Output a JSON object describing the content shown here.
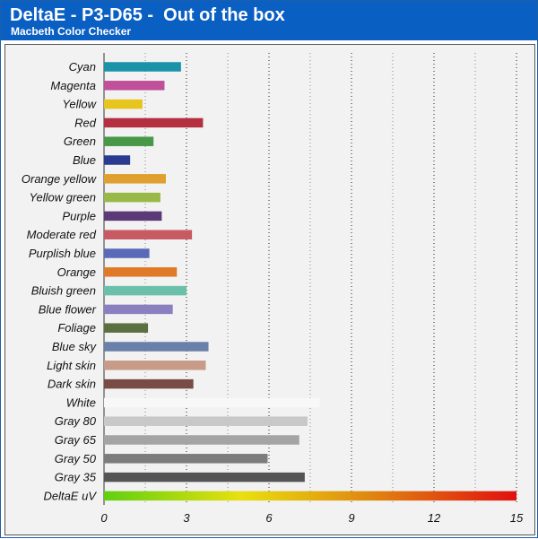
{
  "header": {
    "title": "DeltaE - P3-D65 -  Out of the box",
    "subtitle": "Macbeth Color Checker"
  },
  "chart_data": {
    "type": "bar",
    "orientation": "horizontal",
    "categories": [
      "Cyan",
      "Magenta",
      "Yellow",
      "Red",
      "Green",
      "Blue",
      "Orange yellow",
      "Yellow green",
      "Purple",
      "Moderate red",
      "Purplish blue",
      "Orange",
      "Bluish green",
      "Blue flower",
      "Foliage",
      "Blue sky",
      "Light skin",
      "Dark skin",
      "White",
      "Gray 80",
      "Gray 65",
      "Gray 50",
      "Gray 35",
      "DeltaE uV"
    ],
    "values": [
      2.8,
      2.2,
      1.4,
      3.6,
      1.8,
      0.95,
      2.25,
      2.05,
      2.1,
      3.2,
      1.65,
      2.65,
      3.0,
      2.5,
      1.6,
      3.8,
      3.7,
      3.25,
      7.85,
      7.4,
      7.1,
      5.95,
      7.3,
      15.0
    ],
    "colors": [
      "#1a93a8",
      "#c0509a",
      "#e8c41e",
      "#b43040",
      "#489848",
      "#2a3a90",
      "#e0a030",
      "#98b848",
      "#5c3a78",
      "#c85a64",
      "#5a6ab8",
      "#e07a28",
      "#6ac0a8",
      "#8a80c0",
      "#5a7040",
      "#6a80a8",
      "#c89a88",
      "#784c44",
      "#f8f8f8",
      "#c8c8c8",
      "#a4a4a4",
      "#7c7c7c",
      "#545454",
      "gradient"
    ],
    "gradient_stops": [
      "#60d010",
      "#e8e010",
      "#e08010",
      "#e01010"
    ],
    "xticks": [
      0,
      3,
      6,
      9,
      12,
      15
    ],
    "xlim": [
      0,
      15
    ],
    "grid": "vertical dotted at every 1.5 units",
    "legend": "none"
  }
}
